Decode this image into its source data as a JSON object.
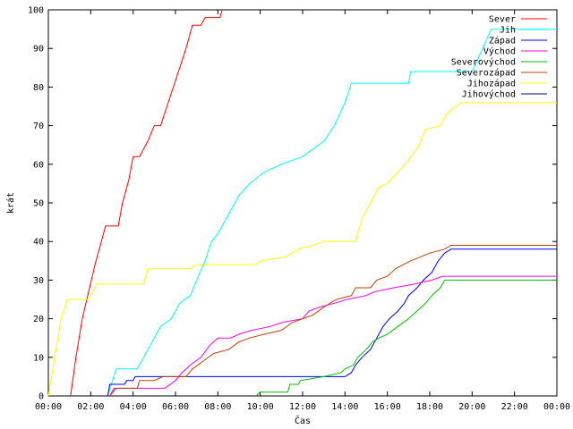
{
  "chart_data": {
    "type": "line",
    "title": "",
    "xlabel": "Čas",
    "ylabel": "krát",
    "xlim": [
      0,
      24
    ],
    "ylim": [
      0,
      100
    ],
    "x_ticks": [
      "00:00",
      "02:00",
      "04:00",
      "06:00",
      "08:00",
      "10:00",
      "12:00",
      "14:00",
      "16:00",
      "18:00",
      "20:00",
      "22:00",
      "00:00"
    ],
    "y_ticks": [
      "0",
      "10",
      "20",
      "30",
      "40",
      "50",
      "60",
      "70",
      "80",
      "90",
      "100"
    ],
    "grid": false,
    "legend_position": "top-right",
    "series": [
      {
        "name": "Sever",
        "color": "#ff0000",
        "points": [
          [
            1.05,
            0
          ],
          [
            1.3,
            10
          ],
          [
            1.6,
            20
          ],
          [
            1.9,
            27
          ],
          [
            2.2,
            34
          ],
          [
            2.5,
            40
          ],
          [
            2.7,
            44
          ],
          [
            3.3,
            44
          ],
          [
            3.5,
            50
          ],
          [
            3.8,
            56
          ],
          [
            4.0,
            62
          ],
          [
            4.3,
            62
          ],
          [
            4.5,
            64
          ],
          [
            4.7,
            66
          ],
          [
            5.0,
            70
          ],
          [
            5.3,
            70
          ],
          [
            5.6,
            75
          ],
          [
            5.9,
            80
          ],
          [
            6.2,
            85
          ],
          [
            6.5,
            90
          ],
          [
            6.8,
            96
          ],
          [
            7.2,
            96
          ],
          [
            7.4,
            98
          ],
          [
            8.1,
            98
          ],
          [
            8.2,
            100
          ]
        ]
      },
      {
        "name": "Jih",
        "color": "#00ffff",
        "points": [
          [
            2.8,
            0
          ],
          [
            3.2,
            7
          ],
          [
            4.2,
            7
          ],
          [
            4.5,
            10
          ],
          [
            5.0,
            15
          ],
          [
            5.3,
            18
          ],
          [
            5.8,
            20
          ],
          [
            6.2,
            24
          ],
          [
            6.7,
            26
          ],
          [
            7.0,
            30
          ],
          [
            7.4,
            35
          ],
          [
            7.7,
            40
          ],
          [
            8.0,
            42
          ],
          [
            8.5,
            47
          ],
          [
            9.0,
            52
          ],
          [
            9.5,
            55
          ],
          [
            10.2,
            58
          ],
          [
            11.0,
            60
          ],
          [
            12.0,
            62
          ],
          [
            13.0,
            66
          ],
          [
            13.5,
            70
          ],
          [
            14.0,
            76
          ],
          [
            14.3,
            81
          ],
          [
            17.0,
            81
          ],
          [
            17.1,
            84
          ],
          [
            20.0,
            84
          ],
          [
            20.5,
            90
          ],
          [
            20.9,
            95
          ],
          [
            24,
            95
          ]
        ]
      },
      {
        "name": "Západ",
        "color": "#0000ff",
        "points": [
          [
            2.8,
            0
          ],
          [
            2.9,
            3
          ],
          [
            3.0,
            3
          ],
          [
            3.1,
            3
          ],
          [
            3.6,
            3
          ],
          [
            3.7,
            4
          ],
          [
            4.0,
            4
          ],
          [
            4.1,
            5
          ],
          [
            14.0,
            5
          ],
          [
            14.3,
            6
          ],
          [
            14.5,
            8
          ],
          [
            14.8,
            10
          ],
          [
            15.2,
            12
          ],
          [
            15.5,
            15
          ],
          [
            15.8,
            18
          ],
          [
            16.1,
            20
          ],
          [
            16.5,
            22
          ],
          [
            16.8,
            24
          ],
          [
            17.0,
            26
          ],
          [
            17.4,
            28
          ],
          [
            17.7,
            30
          ],
          [
            18.1,
            32
          ],
          [
            18.4,
            35
          ],
          [
            18.7,
            37
          ],
          [
            19.0,
            38
          ],
          [
            24,
            38
          ]
        ]
      },
      {
        "name": "Východ",
        "color": "#ff00ff",
        "points": [
          [
            2.9,
            0
          ],
          [
            3.2,
            2
          ],
          [
            5.5,
            2
          ],
          [
            6.0,
            4
          ],
          [
            6.3,
            6
          ],
          [
            6.7,
            8
          ],
          [
            7.2,
            10
          ],
          [
            7.6,
            13
          ],
          [
            8.0,
            15
          ],
          [
            8.6,
            15
          ],
          [
            9.0,
            16
          ],
          [
            9.6,
            17
          ],
          [
            10.5,
            18
          ],
          [
            11.0,
            19
          ],
          [
            12.0,
            20
          ],
          [
            12.3,
            22
          ],
          [
            12.8,
            23
          ],
          [
            13.5,
            24
          ],
          [
            14.1,
            25
          ],
          [
            15.0,
            26
          ],
          [
            15.4,
            27
          ],
          [
            16.3,
            28
          ],
          [
            17.3,
            29
          ],
          [
            18.1,
            30
          ],
          [
            18.6,
            31
          ],
          [
            24,
            31
          ]
        ]
      },
      {
        "name": "Severovýchod",
        "color": "#00c000",
        "points": [
          [
            9.8,
            0
          ],
          [
            10.0,
            1
          ],
          [
            11.3,
            1
          ],
          [
            11.4,
            3
          ],
          [
            11.8,
            3
          ],
          [
            11.9,
            4
          ],
          [
            13.0,
            5
          ],
          [
            13.8,
            6
          ],
          [
            14.0,
            7
          ],
          [
            14.4,
            8
          ],
          [
            14.6,
            10
          ],
          [
            15.0,
            12
          ],
          [
            15.3,
            14
          ],
          [
            15.6,
            15
          ],
          [
            16.0,
            16
          ],
          [
            16.5,
            18
          ],
          [
            17.0,
            20
          ],
          [
            17.4,
            22
          ],
          [
            17.8,
            24
          ],
          [
            18.1,
            26
          ],
          [
            18.5,
            28
          ],
          [
            18.7,
            30
          ],
          [
            24,
            30
          ]
        ]
      },
      {
        "name": "Severozápad",
        "color": "#c04000",
        "points": [
          [
            2.9,
            0
          ],
          [
            3.1,
            2
          ],
          [
            4.2,
            2
          ],
          [
            4.3,
            4
          ],
          [
            5.0,
            4
          ],
          [
            5.4,
            5
          ],
          [
            6.5,
            5
          ],
          [
            6.8,
            7
          ],
          [
            7.3,
            9
          ],
          [
            7.8,
            11
          ],
          [
            8.5,
            12
          ],
          [
            9.0,
            14
          ],
          [
            9.5,
            15
          ],
          [
            10.2,
            16
          ],
          [
            11.0,
            17
          ],
          [
            11.5,
            19
          ],
          [
            12.0,
            20
          ],
          [
            12.5,
            21
          ],
          [
            13.0,
            23
          ],
          [
            13.6,
            25
          ],
          [
            14.3,
            26
          ],
          [
            14.5,
            28
          ],
          [
            15.2,
            28
          ],
          [
            15.5,
            30
          ],
          [
            16.0,
            31
          ],
          [
            16.4,
            33
          ],
          [
            17.1,
            35
          ],
          [
            18.0,
            37
          ],
          [
            18.7,
            38
          ],
          [
            19.0,
            39
          ],
          [
            24,
            39
          ]
        ]
      },
      {
        "name": "Jihozápad",
        "color": "#ffff00",
        "points": [
          [
            0,
            0
          ],
          [
            0.3,
            10
          ],
          [
            0.6,
            20
          ],
          [
            0.9,
            25
          ],
          [
            1.9,
            25
          ],
          [
            2.3,
            29
          ],
          [
            4.5,
            29
          ],
          [
            4.7,
            33
          ],
          [
            6.7,
            33
          ],
          [
            7.0,
            34
          ],
          [
            9.8,
            34
          ],
          [
            10.0,
            35
          ],
          [
            11.2,
            36
          ],
          [
            11.8,
            38
          ],
          [
            12.5,
            39
          ],
          [
            13.0,
            40
          ],
          [
            14.5,
            40
          ],
          [
            14.8,
            46
          ],
          [
            15.2,
            50
          ],
          [
            15.6,
            54
          ],
          [
            16.0,
            55
          ],
          [
            16.5,
            58
          ],
          [
            17.0,
            61
          ],
          [
            17.5,
            65
          ],
          [
            17.8,
            69
          ],
          [
            18.5,
            70
          ],
          [
            18.8,
            73
          ],
          [
            19.0,
            74
          ],
          [
            19.5,
            76
          ],
          [
            24,
            76
          ]
        ]
      },
      {
        "name": "Jihovýchod",
        "color": "#000080",
        "points": []
      }
    ]
  }
}
